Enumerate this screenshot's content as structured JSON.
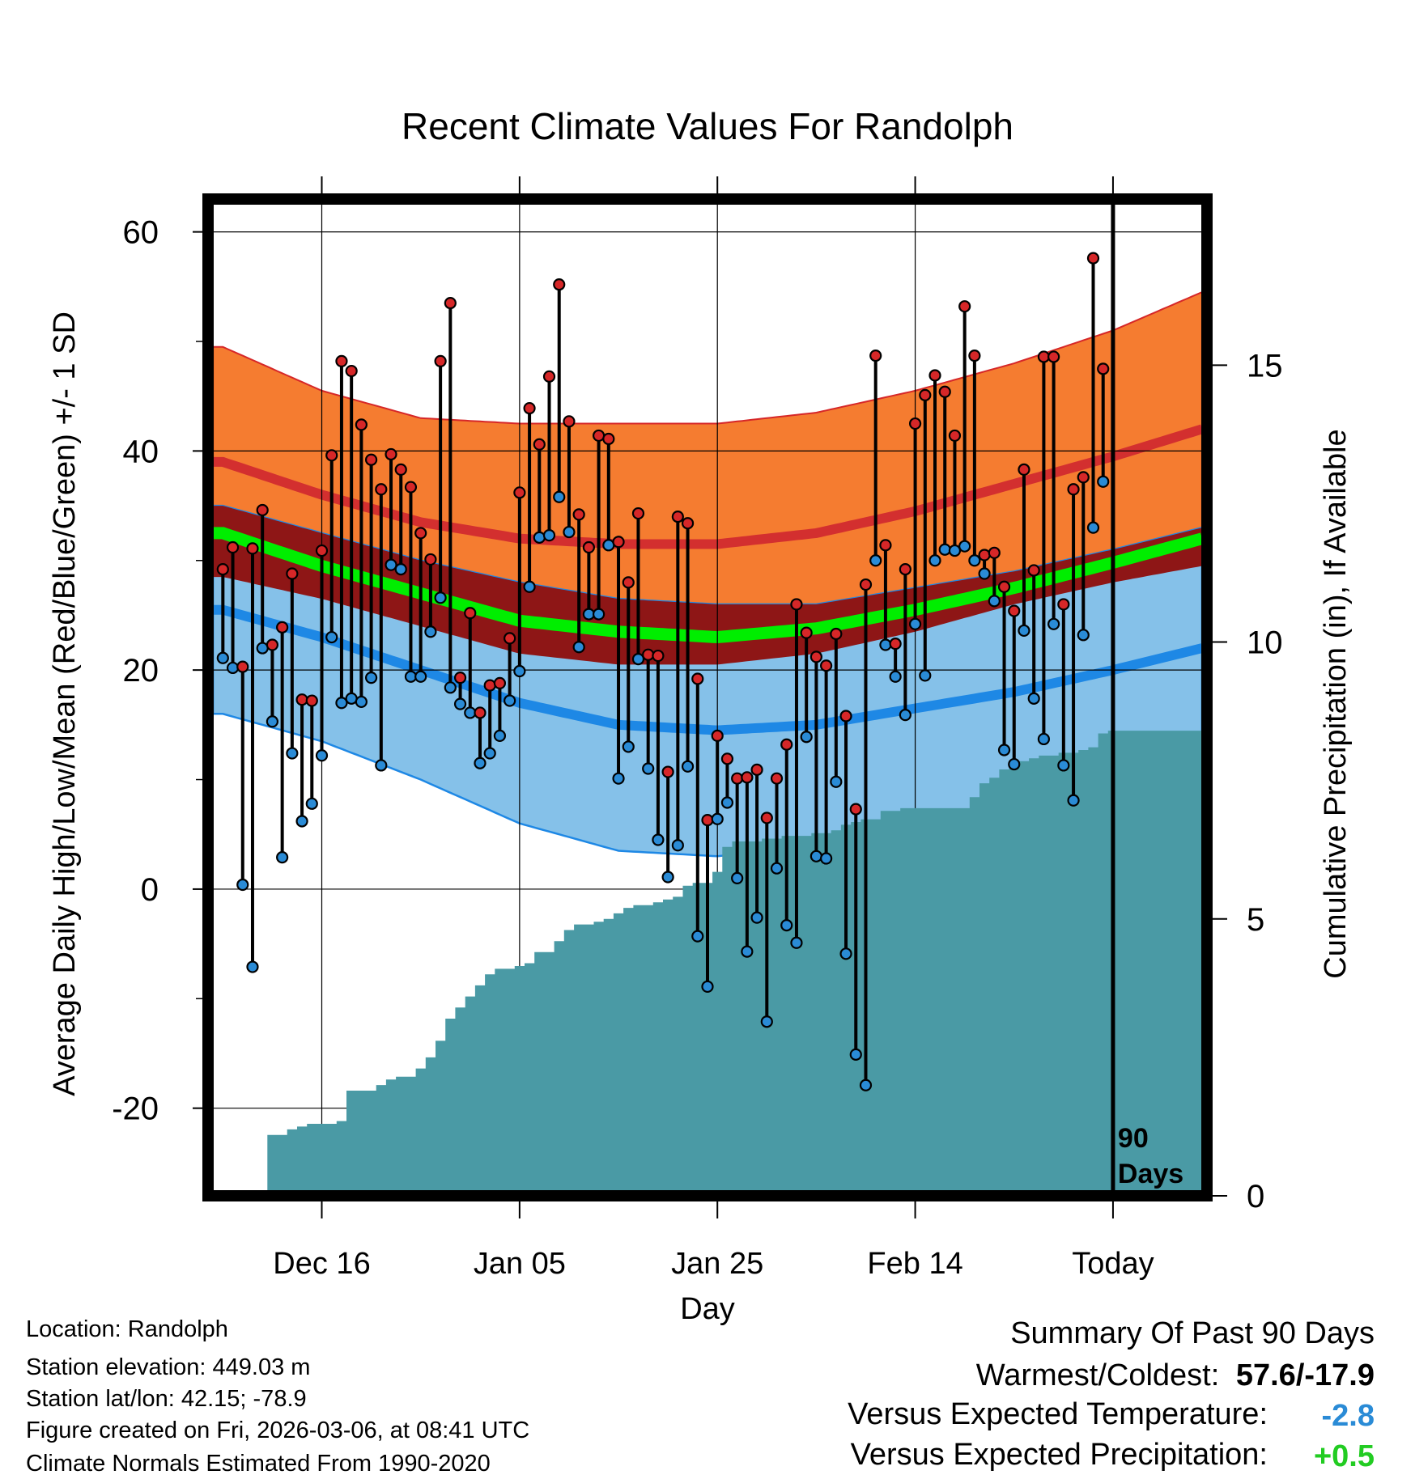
{
  "chart_data": {
    "type": "line",
    "title": "Recent Climate Values For Randolph",
    "xlabel": "Day",
    "ylabel": "Average Daily High/Low/Mean (Red/Blue/Green) +/- 1 SD",
    "ylabel_right": "Cumulative Precipitation (in), If Available",
    "ylim": [
      -28,
      63
    ],
    "right_ylim": [
      0,
      18
    ],
    "y_ticks": [
      "60",
      "40",
      "20",
      "0",
      "-20"
    ],
    "y_tick_values": [
      60,
      40,
      20,
      0,
      -20
    ],
    "right_ticks": [
      "15",
      "10",
      "5",
      "0"
    ],
    "right_tick_values": [
      15,
      10,
      5,
      0
    ],
    "x_ticks": [
      "Dec 16",
      "Jan 05",
      "Jan 25",
      "Feb 14",
      "Today"
    ],
    "x_tick_days": [
      10,
      30,
      50,
      70,
      90
    ],
    "x_range": [
      -1.5,
      99.5
    ],
    "window_label": "90 Days",
    "normals": {
      "days": [
        0,
        10,
        20,
        30,
        40,
        50,
        60,
        70,
        80,
        90,
        99
      ],
      "high_mean": [
        39,
        36,
        33.5,
        32,
        31.5,
        31.5,
        32.5,
        34.5,
        37,
        39.5,
        42
      ],
      "high_sd": [
        10.5,
        9.5,
        9.5,
        10.5,
        11,
        11,
        11,
        11,
        11,
        11.5,
        12.5
      ],
      "low_mean": [
        25.5,
        23,
        20,
        17,
        15,
        14.5,
        15,
        16.5,
        18,
        20,
        22
      ],
      "low_sd": [
        9.5,
        9.5,
        10,
        11,
        11.5,
        11.5,
        11,
        11,
        11,
        11,
        11
      ],
      "mean": [
        32.5,
        29.5,
        27,
        24.5,
        23.5,
        23,
        23.8,
        25.5,
        27.5,
        29.8,
        32
      ]
    },
    "series": [
      {
        "name": "Daily High",
        "color": "#d62728",
        "values": [
          29.2,
          31.2,
          20.3,
          31.1,
          34.6,
          22.3,
          23.9,
          28.8,
          17.3,
          17.2,
          30.9,
          39.6,
          48.2,
          47.3,
          42.4,
          39.2,
          36.5,
          39.7,
          38.3,
          36.7,
          32.5,
          30.1,
          48.2,
          53.5,
          19.3,
          25.2,
          16.1,
          18.6,
          18.8,
          22.9,
          36.2,
          43.9,
          40.6,
          46.8,
          55.2,
          42.7,
          34.2,
          31.2,
          41.4,
          41.1,
          31.7,
          28.0,
          34.3,
          21.4,
          21.3,
          10.7,
          34.0,
          33.4,
          19.2,
          6.3,
          14.0,
          11.9,
          10.1,
          10.2,
          10.9,
          6.5,
          10.1,
          13.2,
          26.0,
          23.4,
          21.2,
          20.4,
          23.3,
          15.8,
          7.3,
          27.8,
          48.7,
          31.4,
          22.4,
          29.2,
          42.5,
          45.1,
          46.9,
          45.4,
          41.4,
          53.2,
          48.7,
          30.5,
          30.7,
          27.6,
          25.4,
          38.3,
          29.1,
          48.6,
          48.6,
          26.0,
          36.5,
          37.6,
          57.6,
          47.5
        ]
      },
      {
        "name": "Daily Low",
        "color": "#2a8bd6",
        "values": [
          21.1,
          20.2,
          0.4,
          -7.1,
          22.0,
          15.3,
          2.9,
          12.4,
          6.2,
          7.8,
          12.2,
          23.0,
          17.0,
          17.4,
          17.1,
          19.3,
          11.3,
          29.6,
          29.2,
          19.4,
          19.4,
          23.5,
          26.6,
          18.4,
          16.9,
          16.1,
          11.5,
          12.4,
          14.0,
          17.2,
          19.9,
          27.6,
          32.1,
          32.3,
          35.8,
          32.6,
          22.1,
          25.1,
          25.1,
          31.4,
          10.1,
          13.0,
          21.0,
          11.0,
          4.5,
          1.1,
          4.0,
          11.2,
          -4.3,
          -8.9,
          6.4,
          7.9,
          1.0,
          -5.7,
          -2.6,
          -12.1,
          1.9,
          -3.3,
          -4.9,
          13.9,
          3.0,
          2.8,
          9.8,
          -5.9,
          -15.1,
          -17.9,
          30.0,
          22.3,
          19.4,
          15.9,
          24.2,
          19.5,
          30.0,
          31.0,
          30.9,
          31.3,
          30.0,
          28.8,
          26.3,
          12.7,
          11.4,
          23.6,
          17.4,
          13.7,
          24.2,
          11.3,
          8.1,
          23.2,
          33.0,
          37.2
        ]
      },
      {
        "name": "Cumulative Precipitation",
        "color": "#4a9aa5",
        "values": [
          0,
          0,
          0,
          0,
          0,
          1.1,
          1.1,
          1.2,
          1.25,
          1.3,
          1.3,
          1.3,
          1.35,
          1.9,
          1.9,
          1.9,
          2.0,
          2.1,
          2.15,
          2.15,
          2.3,
          2.5,
          2.8,
          3.2,
          3.4,
          3.6,
          3.8,
          4.0,
          4.1,
          4.1,
          4.15,
          4.2,
          4.4,
          4.4,
          4.6,
          4.8,
          4.9,
          4.9,
          4.95,
          5.0,
          5.1,
          5.2,
          5.25,
          5.25,
          5.3,
          5.35,
          5.4,
          5.6,
          5.65,
          5.65,
          5.85,
          6.3,
          6.4,
          6.4,
          6.4,
          6.45,
          6.45,
          6.5,
          6.5,
          6.5,
          6.55,
          6.55,
          6.6,
          6.7,
          6.75,
          6.8,
          6.8,
          6.95,
          6.95,
          7.0,
          7.0,
          7.0,
          7.0,
          7.0,
          7.0,
          7.0,
          7.2,
          7.45,
          7.55,
          7.7,
          7.75,
          7.85,
          7.9,
          7.95,
          7.95,
          8.0,
          8.0,
          8.05,
          8.1,
          8.35,
          8.4
        ]
      }
    ]
  },
  "footer": {
    "location": "Location: Randolph",
    "elevation": "Station elevation: 449.03 m",
    "latlon": "Station lat/lon: 42.15; -78.9",
    "created": "Figure created on Fri, 2026-03-06, at 08:41 UTC",
    "normals": "Climate Normals Estimated From 1990-2020"
  },
  "summary": {
    "title": "Summary Of Past 90 Days",
    "warm_cold_label": "Warmest/Coldest:",
    "warm_cold_value": "57.6/-17.9",
    "temp_label": "Versus Expected Temperature:",
    "temp_value": "-2.8",
    "temp_color": "#2a8bd6",
    "precip_label": "Versus Expected Precipitation:",
    "precip_value": "+0.5",
    "precip_color": "#22cc22"
  }
}
